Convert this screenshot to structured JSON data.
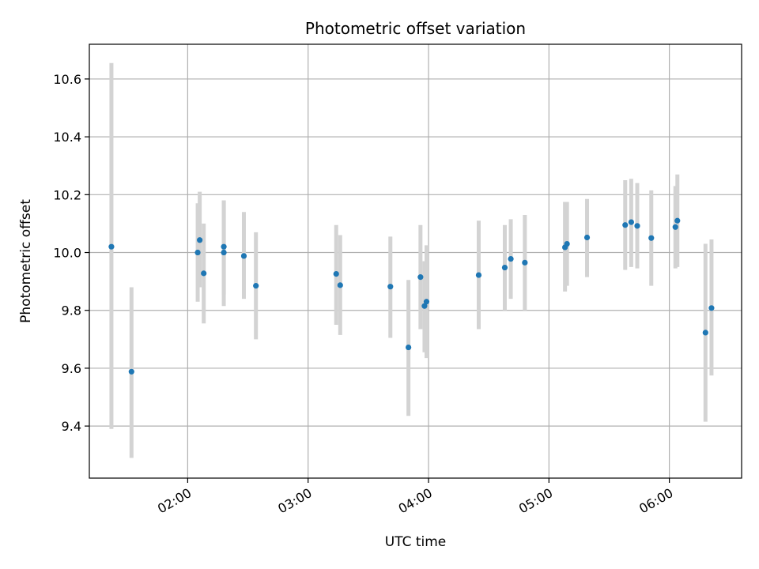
{
  "chart_data": {
    "type": "scatter",
    "title": "Photometric offset variation",
    "xlabel": "UTC time",
    "ylabel": "Photometric offset",
    "x_unit": "time of day (UTC, HH:MM)",
    "xlim": [
      "01:11",
      "06:36"
    ],
    "ylim": [
      9.22,
      10.72
    ],
    "x_ticks": [
      "02:00",
      "03:00",
      "04:00",
      "05:00",
      "06:00"
    ],
    "y_ticks": [
      "9.4",
      "9.6",
      "9.8",
      "10.0",
      "10.2",
      "10.4",
      "10.6"
    ],
    "grid": true,
    "legend": "none",
    "colors": {
      "points": "#1f77b4",
      "error_bars": "#d3d3d3",
      "grid": "#b0b0b0"
    },
    "series": [
      {
        "points": [
          {
            "x": "01:22",
            "y": 10.02,
            "ymin": 9.39,
            "ymax": 10.655
          },
          {
            "x": "01:32",
            "y": 9.588,
            "ymin": 9.29,
            "ymax": 9.88
          },
          {
            "x": "02:05",
            "y": 10.0,
            "ymin": 9.83,
            "ymax": 10.17
          },
          {
            "x": "02:06",
            "y": 10.043,
            "ymin": 9.88,
            "ymax": 10.21
          },
          {
            "x": "02:08",
            "y": 9.928,
            "ymin": 9.755,
            "ymax": 10.1
          },
          {
            "x": "02:18",
            "y": 10.0,
            "ymin": 9.815,
            "ymax": 10.18
          },
          {
            "x": "02:18",
            "y": 10.02,
            "ymin": 9.855,
            "ymax": 10.18
          },
          {
            "x": "02:28",
            "y": 9.988,
            "ymin": 9.84,
            "ymax": 10.14
          },
          {
            "x": "02:34",
            "y": 9.885,
            "ymin": 9.7,
            "ymax": 10.07
          },
          {
            "x": "03:14",
            "y": 9.926,
            "ymin": 9.75,
            "ymax": 10.095
          },
          {
            "x": "03:16",
            "y": 9.887,
            "ymin": 9.715,
            "ymax": 10.06
          },
          {
            "x": "03:41",
            "y": 9.882,
            "ymin": 9.705,
            "ymax": 10.055
          },
          {
            "x": "03:50",
            "y": 9.672,
            "ymin": 9.435,
            "ymax": 9.905
          },
          {
            "x": "03:56",
            "y": 9.915,
            "ymin": 9.735,
            "ymax": 10.095
          },
          {
            "x": "03:58",
            "y": 9.815,
            "ymin": 9.655,
            "ymax": 9.97
          },
          {
            "x": "03:59",
            "y": 9.83,
            "ymin": 9.635,
            "ymax": 10.025
          },
          {
            "x": "04:25",
            "y": 9.922,
            "ymin": 9.735,
            "ymax": 10.11
          },
          {
            "x": "04:38",
            "y": 9.948,
            "ymin": 9.8,
            "ymax": 10.095
          },
          {
            "x": "04:41",
            "y": 9.978,
            "ymin": 9.84,
            "ymax": 10.115
          },
          {
            "x": "04:48",
            "y": 9.965,
            "ymin": 9.8,
            "ymax": 10.13
          },
          {
            "x": "05:08",
            "y": 10.018,
            "ymin": 9.865,
            "ymax": 10.175
          },
          {
            "x": "05:09",
            "y": 10.03,
            "ymin": 9.885,
            "ymax": 10.175
          },
          {
            "x": "05:19",
            "y": 10.052,
            "ymin": 9.915,
            "ymax": 10.185
          },
          {
            "x": "05:38",
            "y": 10.095,
            "ymin": 9.94,
            "ymax": 10.25
          },
          {
            "x": "05:41",
            "y": 10.105,
            "ymin": 9.95,
            "ymax": 10.255
          },
          {
            "x": "05:44",
            "y": 10.092,
            "ymin": 9.945,
            "ymax": 10.24
          },
          {
            "x": "05:51",
            "y": 10.05,
            "ymin": 9.885,
            "ymax": 10.215
          },
          {
            "x": "06:03",
            "y": 10.088,
            "ymin": 9.945,
            "ymax": 10.23
          },
          {
            "x": "06:04",
            "y": 10.11,
            "ymin": 9.95,
            "ymax": 10.27
          },
          {
            "x": "06:18",
            "y": 9.723,
            "ymin": 9.415,
            "ymax": 10.03
          },
          {
            "x": "06:21",
            "y": 9.808,
            "ymin": 9.575,
            "ymax": 10.045
          }
        ]
      }
    ]
  }
}
